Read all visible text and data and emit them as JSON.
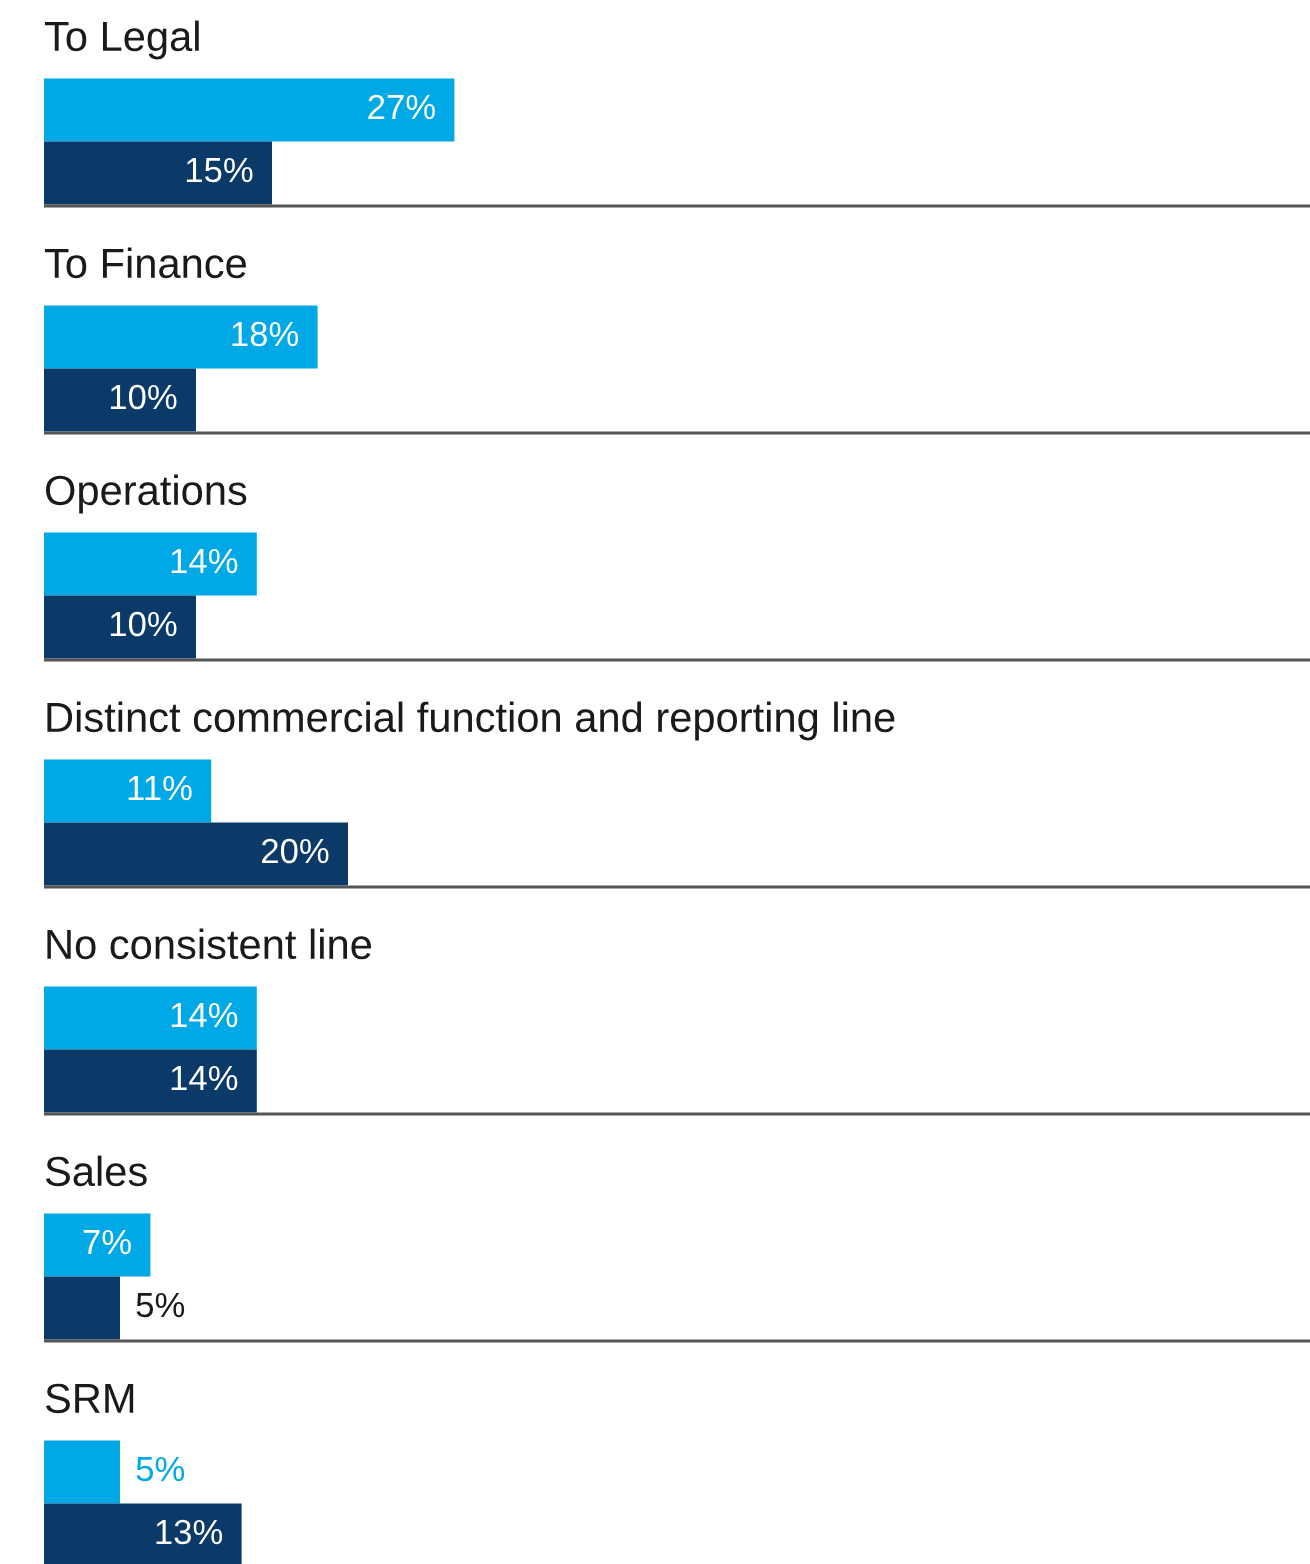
{
  "chart_data": {
    "type": "bar",
    "orientation": "horizontal",
    "categories": [
      "To Legal",
      "To Finance",
      "Operations",
      "Distinct commercial function and reporting line",
      "No consistent line",
      "Sales",
      "SRM"
    ],
    "series": [
      {
        "color": "#00a8e6",
        "values": [
          27,
          18,
          14,
          11,
          14,
          7,
          5
        ],
        "value_labels": [
          "27%",
          "18%",
          "14%",
          "11%",
          "14%",
          "7%",
          "5%"
        ]
      },
      {
        "color": "#0b3a68",
        "values": [
          15,
          10,
          10,
          20,
          14,
          5,
          13
        ],
        "value_labels": [
          "15%",
          "10%",
          "10%",
          "20%",
          "14%",
          "5%",
          "13%"
        ]
      }
    ]
  }
}
